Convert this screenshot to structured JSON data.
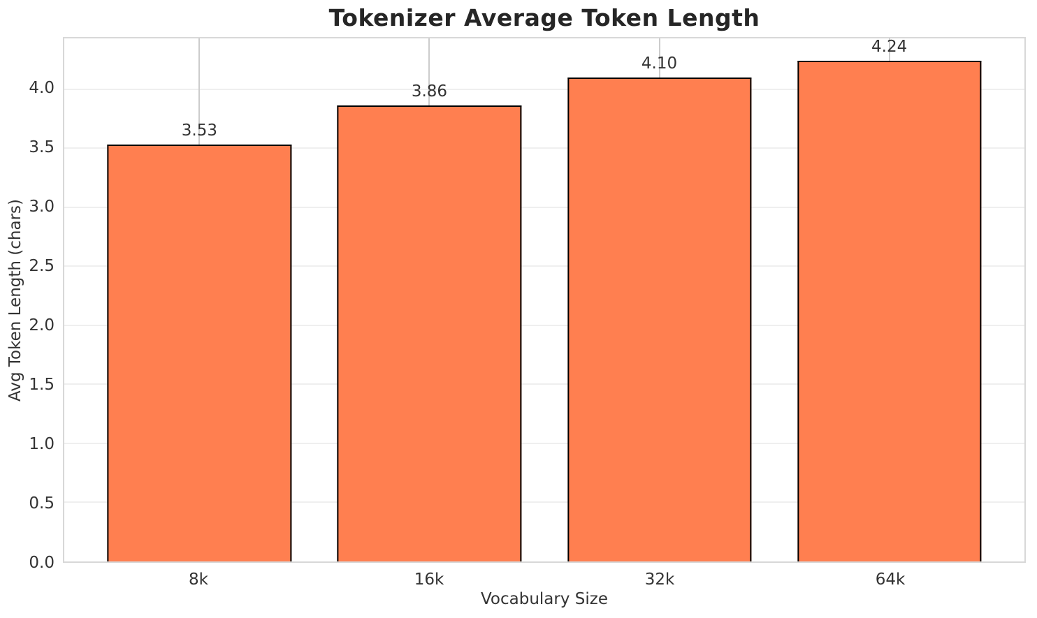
{
  "chart_data": {
    "type": "bar",
    "title": "Tokenizer Average Token Length",
    "xlabel": "Vocabulary Size",
    "ylabel": "Avg Token Length (chars)",
    "categories": [
      "8k",
      "16k",
      "32k",
      "64k"
    ],
    "values": [
      3.53,
      3.86,
      4.1,
      4.24
    ],
    "value_labels": [
      "3.53",
      "3.86",
      "4.10",
      "4.24"
    ],
    "yticks": [
      0.0,
      0.5,
      1.0,
      1.5,
      2.0,
      2.5,
      3.0,
      3.5,
      4.0
    ],
    "ytick_labels": [
      "0.0",
      "0.5",
      "1.0",
      "1.5",
      "2.0",
      "2.5",
      "3.0",
      "3.5",
      "4.0"
    ],
    "ylim": [
      0,
      4.43
    ],
    "grid": true,
    "legend": false,
    "colors": {
      "bar_fill": "#ff7f50",
      "bar_edge": "#000000",
      "h_gridline": "#efefef",
      "v_gridline": "#cccccc",
      "spine": "#d8d8d8",
      "tick_text": "#333333",
      "title_text": "#262626"
    }
  }
}
